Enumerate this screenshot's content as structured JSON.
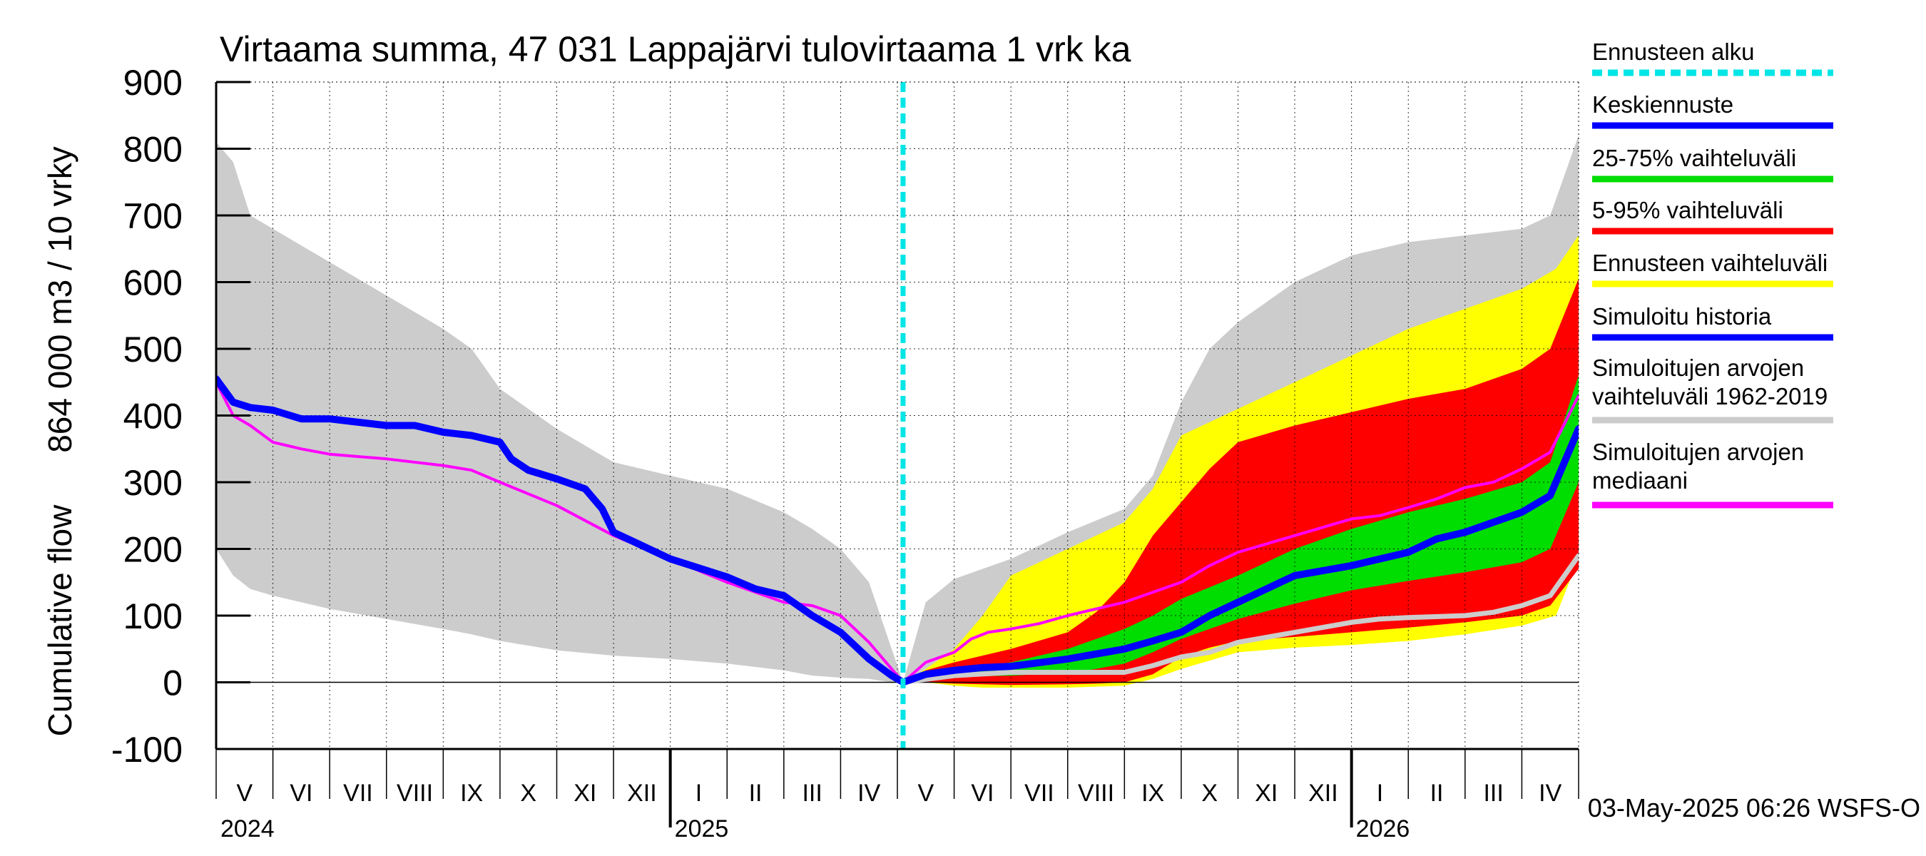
{
  "chart_data": {
    "type": "area",
    "title": "Virtaama summa, 47 031 Lappajärvi tulovirtaama 1 vrk ka",
    "ylabel_line1": "864 000 m3 / 10 vrky",
    "ylabel_line2": "Cumulative flow",
    "ylim": [
      -100,
      900
    ],
    "yticks": [
      -100,
      0,
      100,
      200,
      300,
      400,
      500,
      600,
      700,
      800,
      900
    ],
    "grid": true,
    "x_unit": "months since start of May 2024",
    "xlim": [
      0,
      24
    ],
    "forecast_start": 12.1,
    "month_labels": [
      "V",
      "VI",
      "VII",
      "VIII",
      "IX",
      "X",
      "XI",
      "XII",
      "I",
      "II",
      "III",
      "IV",
      "V",
      "VI",
      "VII",
      "VIII",
      "IX",
      "X",
      "XI",
      "XII",
      "I",
      "II",
      "III",
      "IV"
    ],
    "year_labels": [
      {
        "label": "2024",
        "x": 0
      },
      {
        "label": "2025",
        "x": 8
      },
      {
        "label": "2026",
        "x": 20
      }
    ],
    "footer": "03-May-2025 06:26 WSFS-O",
    "legend": [
      {
        "label": "Ennusteen alku",
        "color": "#00e5e5",
        "style": "dashed"
      },
      {
        "label": "Keskiennuste",
        "color": "#0000ff",
        "style": "solid"
      },
      {
        "label": "25-75% vaihteluväli",
        "color": "#00dd00",
        "style": "solid"
      },
      {
        "label": "5-95% vaihteluväli",
        "color": "#ff0000",
        "style": "solid"
      },
      {
        "label": "Ennusteen vaihteluväli",
        "color": "#ffff00",
        "style": "solid"
      },
      {
        "label": "Simuloitu historia",
        "color": "#0000ff",
        "style": "solid"
      },
      {
        "label": "Simuloitujen arvojen vaihteluväli 1962-2019",
        "lines": [
          "Simuloitujen arvojen",
          "vaihteluväli 1962-2019"
        ],
        "color": "#cccccc",
        "style": "solid"
      },
      {
        "label": "Simuloitujen arvojen mediaani",
        "lines": [
          "Simuloitujen arvojen",
          "mediaani"
        ],
        "color": "#ff00ff",
        "style": "solid"
      }
    ],
    "series": [
      {
        "name": "Simuloitujen arvojen vaihteluväli 1962-2019",
        "kind": "band",
        "color": "#cccccc",
        "x": [
          0,
          0.3,
          0.6,
          1.0,
          2.0,
          3.0,
          4.0,
          4.5,
          5.0,
          6.0,
          7.0,
          8.0,
          9.0,
          10.0,
          10.5,
          11.0,
          11.5,
          11.9,
          12.1,
          12.5,
          13.0,
          14.0,
          15.0,
          16.0,
          16.5,
          17.0,
          17.5,
          18.0,
          19.0,
          20.0,
          21.0,
          22.0,
          23.0,
          23.5,
          24.0
        ],
        "upper": [
          810,
          780,
          700,
          680,
          630,
          580,
          530,
          500,
          440,
          380,
          330,
          310,
          290,
          255,
          230,
          200,
          150,
          50,
          0,
          120,
          155,
          185,
          225,
          260,
          310,
          420,
          500,
          540,
          600,
          640,
          660,
          670,
          680,
          700,
          820
        ],
        "lower": [
          200,
          160,
          140,
          130,
          110,
          95,
          80,
          72,
          62,
          48,
          40,
          35,
          28,
          18,
          10,
          7,
          5,
          0,
          0,
          5,
          8,
          5,
          0,
          0,
          8,
          20,
          38,
          52,
          70,
          85,
          92,
          100,
          110,
          140,
          180
        ]
      },
      {
        "name": "Ennusteen vaihteluväli",
        "kind": "band",
        "color": "#ffff00",
        "x": [
          12.1,
          12.5,
          13.0,
          13.5,
          14.0,
          15.0,
          16.0,
          16.5,
          17.0,
          18.0,
          19.0,
          20.0,
          21.0,
          22.0,
          23.0,
          23.6,
          24.0
        ],
        "upper": [
          0,
          20,
          50,
          100,
          160,
          200,
          240,
          290,
          370,
          410,
          450,
          490,
          530,
          560,
          590,
          620,
          670
        ],
        "lower": [
          0,
          0,
          -5,
          -8,
          -8,
          -8,
          -5,
          5,
          20,
          45,
          52,
          56,
          62,
          72,
          85,
          100,
          185
        ]
      },
      {
        "name": "5-95% vaihteluväli",
        "kind": "band",
        "color": "#ff0000",
        "x": [
          12.1,
          12.5,
          13.0,
          14.0,
          15.0,
          15.5,
          16.0,
          16.5,
          17.0,
          17.5,
          18.0,
          19.0,
          20.0,
          21.0,
          22.0,
          23.0,
          23.5,
          24.0
        ],
        "upper": [
          0,
          18,
          30,
          50,
          75,
          105,
          150,
          220,
          270,
          320,
          360,
          385,
          405,
          425,
          440,
          470,
          500,
          605
        ],
        "lower": [
          0,
          0,
          -2,
          -4,
          -3,
          -2,
          0,
          12,
          38,
          52,
          62,
          68,
          75,
          82,
          90,
          100,
          115,
          170
        ]
      },
      {
        "name": "25-75% vaihteluväli",
        "kind": "band",
        "color": "#00dd00",
        "x": [
          12.1,
          12.5,
          13.0,
          14.0,
          15.0,
          15.5,
          16.0,
          16.5,
          17.0,
          18.0,
          19.0,
          20.0,
          21.0,
          22.0,
          23.0,
          23.5,
          24.0
        ],
        "upper": [
          0,
          8,
          18,
          30,
          50,
          65,
          80,
          100,
          125,
          160,
          200,
          230,
          255,
          275,
          300,
          330,
          460
        ],
        "lower": [
          0,
          3,
          8,
          10,
          14,
          20,
          28,
          45,
          65,
          95,
          118,
          138,
          152,
          165,
          180,
          200,
          300
        ]
      },
      {
        "name": "Simuloitujen arvojen mediaani (gray line)",
        "kind": "line",
        "color": "#cccccc",
        "width": 7,
        "x": [
          12.1,
          13.0,
          14.0,
          15.0,
          16.0,
          16.5,
          17.0,
          17.5,
          18.0,
          19.0,
          20.0,
          20.5,
          21.0,
          22.0,
          22.5,
          23.0,
          23.5,
          24.0
        ],
        "y": [
          0,
          10,
          15,
          15,
          15,
          25,
          38,
          45,
          60,
          75,
          90,
          95,
          97,
          100,
          105,
          115,
          130,
          190
        ]
      },
      {
        "name": "Simuloitujen arvojen mediaani",
        "kind": "line",
        "color": "#ff00ff",
        "width": 4,
        "x": [
          0,
          0.3,
          0.6,
          1.0,
          1.5,
          2.0,
          3.0,
          4.0,
          4.5,
          5.0,
          6.0,
          7.0,
          8.0,
          9.0,
          9.5,
          10.0,
          10.5,
          11.0,
          11.5,
          11.9,
          12.1,
          12.5,
          13.0,
          13.3,
          13.6,
          14.0,
          14.5,
          15.0,
          16.0,
          17.0,
          17.5,
          18.0,
          19.0,
          20.0,
          20.5,
          21.0,
          21.5,
          22.0,
          22.5,
          23.0,
          23.5,
          24.0
        ],
        "y": [
          450,
          400,
          385,
          360,
          350,
          342,
          335,
          325,
          318,
          300,
          265,
          220,
          185,
          150,
          135,
          120,
          115,
          100,
          60,
          20,
          0,
          30,
          45,
          65,
          75,
          80,
          88,
          100,
          120,
          150,
          175,
          195,
          220,
          245,
          250,
          262,
          275,
          292,
          300,
          320,
          345,
          430
        ]
      },
      {
        "name": "Simuloitu historia",
        "kind": "line",
        "color": "#0000ff",
        "width": 10,
        "x": [
          0,
          0.3,
          0.6,
          1.0,
          1.5,
          2.0,
          2.5,
          3.0,
          3.5,
          4.0,
          4.5,
          5.0,
          5.2,
          5.5,
          6.0,
          6.5,
          6.8,
          7.0,
          7.5,
          8.0,
          9.0,
          9.5,
          10.0,
          10.5,
          11.0,
          11.5,
          11.9,
          12.1
        ],
        "y": [
          455,
          420,
          412,
          408,
          395,
          395,
          390,
          385,
          385,
          375,
          370,
          360,
          335,
          318,
          305,
          290,
          260,
          225,
          205,
          185,
          158,
          140,
          130,
          100,
          75,
          35,
          10,
          0
        ]
      },
      {
        "name": "Keskiennuste",
        "kind": "line",
        "color": "#0000ff",
        "width": 10,
        "x": [
          12.1,
          12.5,
          13.0,
          13.5,
          14.0,
          15.0,
          16.0,
          16.5,
          17.0,
          17.5,
          18.0,
          18.5,
          19.0,
          20.0,
          20.5,
          21.0,
          21.5,
          22.0,
          22.5,
          23.0,
          23.5,
          24.0
        ],
        "y": [
          0,
          12,
          18,
          22,
          24,
          35,
          50,
          62,
          75,
          100,
          120,
          140,
          160,
          175,
          185,
          195,
          215,
          225,
          240,
          255,
          280,
          380
        ]
      }
    ]
  }
}
